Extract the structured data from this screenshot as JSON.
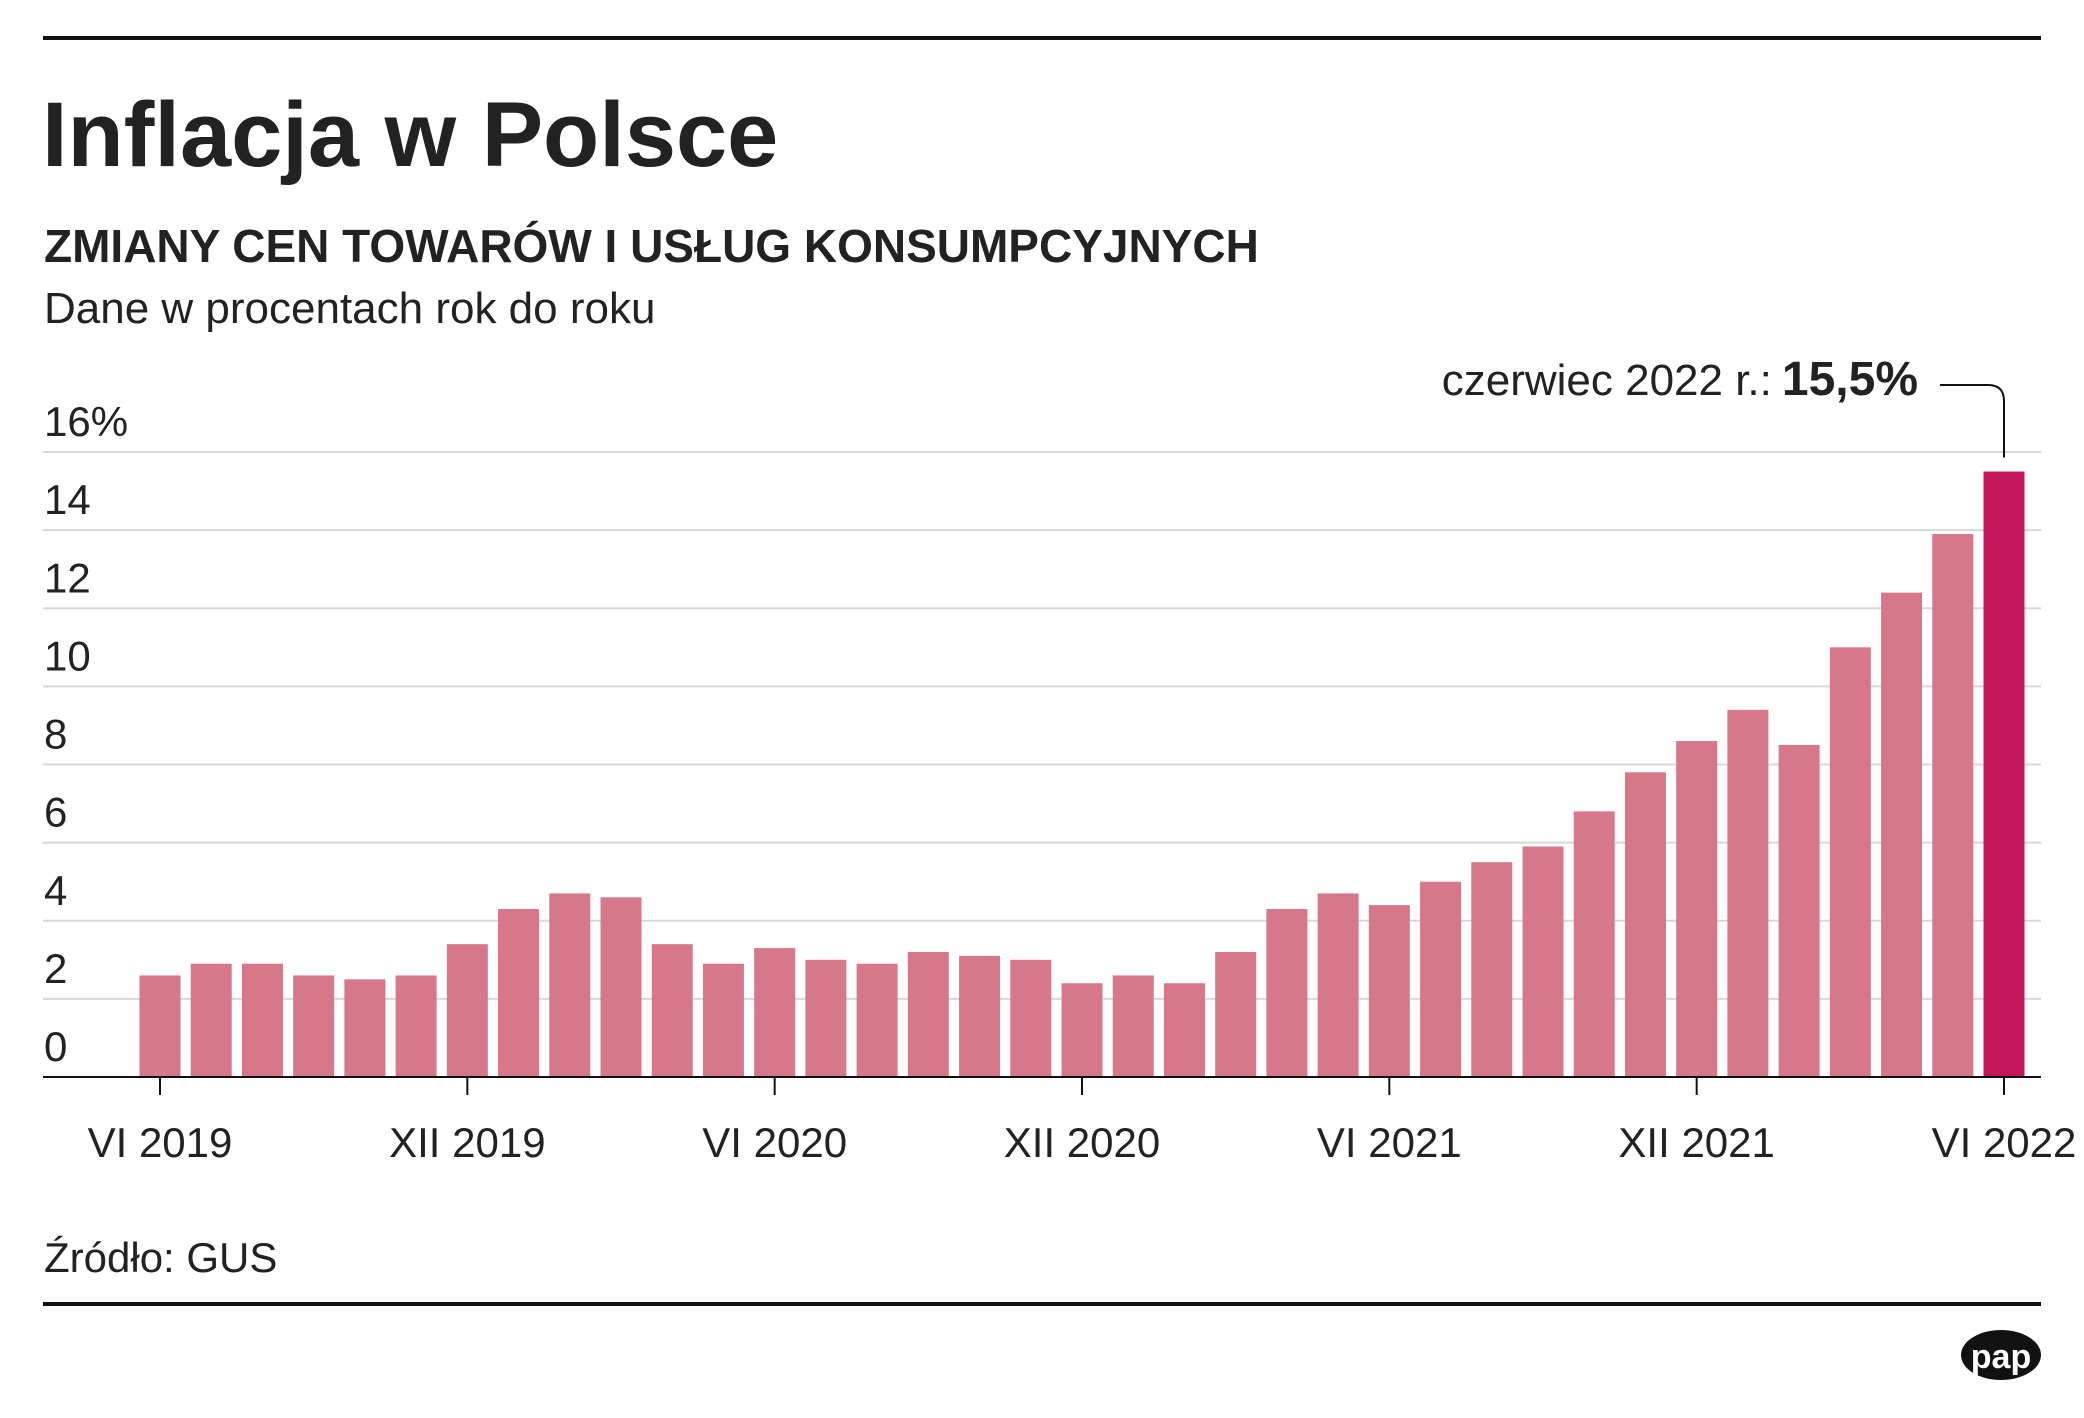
{
  "chart_data": {
    "type": "bar",
    "title": "Inflacja w Polsce",
    "subtitle": "ZMIANY CEN TOWARÓW I USŁUG KONSUMPCYJNYCH",
    "y_label": "Dane w procentach rok do roku",
    "categories": [
      "VI 2019",
      null,
      null,
      null,
      null,
      null,
      "XII 2019",
      null,
      null,
      null,
      null,
      null,
      "VI 2020",
      null,
      null,
      null,
      null,
      null,
      "XII 2020",
      null,
      null,
      null,
      null,
      null,
      "VI 2021",
      null,
      null,
      null,
      null,
      null,
      "XII 2021",
      null,
      null,
      null,
      null,
      null,
      "VI 2022"
    ],
    "values": [
      2.6,
      2.9,
      2.9,
      2.6,
      2.5,
      2.6,
      3.4,
      4.3,
      4.7,
      4.6,
      3.4,
      2.9,
      3.3,
      3.0,
      2.9,
      3.2,
      3.1,
      3.0,
      2.4,
      2.6,
      2.4,
      3.2,
      4.3,
      4.7,
      4.4,
      5.0,
      5.5,
      5.9,
      6.8,
      7.8,
      8.6,
      9.4,
      8.5,
      11.0,
      12.4,
      13.9,
      15.5
    ],
    "value_labels": [
      null,
      null,
      null,
      null,
      null,
      null,
      null,
      null,
      null,
      null,
      null,
      null,
      null,
      null,
      null,
      null,
      null,
      null,
      null,
      null,
      null,
      null,
      null,
      null,
      null,
      null,
      null,
      null,
      null,
      null,
      null,
      null,
      null,
      null,
      null,
      null,
      "15,5%"
    ],
    "annotation": "czerwiec 2022 r.:",
    "color": "#d6788a",
    "highlight_color": "#c2185b",
    "highlight_index": 36,
    "ylim": [
      0,
      16
    ],
    "yticks": [
      0,
      2,
      4,
      6,
      8,
      10,
      12,
      {
        "value": 14,
        "label": "14"
      },
      {
        "value": 16,
        "label": "16%"
      }
    ],
    "grid": true,
    "source": "Źródło: GUS",
    "logo": "pap"
  }
}
